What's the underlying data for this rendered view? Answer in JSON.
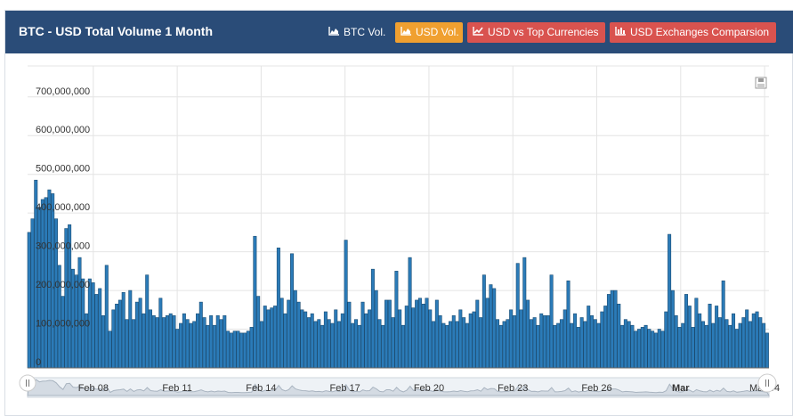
{
  "header": {
    "title": "BTC - USD Total Volume 1 Month",
    "buttons": [
      {
        "label": "BTC Vol.",
        "icon": "area-chart-icon"
      },
      {
        "label": "USD Vol.",
        "icon": "area-chart-icon",
        "active": true
      },
      {
        "label": "USD vs Top Currencies",
        "icon": "line-chart-icon"
      },
      {
        "label": "USD Exchanges Comparsion",
        "icon": "bar-chart-icon"
      }
    ]
  },
  "colors": {
    "header_bg": "#2a4c78",
    "bar_fill": "#2b7bb8",
    "active_button": "#f0a030",
    "red_button": "#d9534f"
  },
  "chart_data": {
    "type": "bar",
    "title": "",
    "xlabel": "",
    "ylabel": "",
    "ylim": [
      0,
      780000000
    ],
    "yticks": [
      "0",
      "100,000,000",
      "200,000,000",
      "300,000,000",
      "400,000,000",
      "500,000,000",
      "600,000,000",
      "700,000,000"
    ],
    "xticks": [
      "Feb 08",
      "Feb 11",
      "Feb 14",
      "Feb 17",
      "Feb 20",
      "Feb 23",
      "Feb 26",
      "Mar",
      "Mar 04"
    ],
    "grid": true,
    "series": [
      {
        "values": [
          350000000,
          385000000,
          485000000,
          415000000,
          435000000,
          440000000,
          460000000,
          450000000,
          385000000,
          265000000,
          185000000,
          360000000,
          370000000,
          255000000,
          240000000,
          285000000,
          230000000,
          140000000,
          230000000,
          220000000,
          190000000,
          205000000,
          135000000,
          265000000,
          95000000,
          150000000,
          165000000,
          175000000,
          195000000,
          125000000,
          200000000,
          125000000,
          170000000,
          180000000,
          140000000,
          240000000,
          150000000,
          135000000,
          130000000,
          180000000,
          130000000,
          135000000,
          140000000,
          135000000,
          100000000,
          115000000,
          140000000,
          125000000,
          115000000,
          120000000,
          140000000,
          170000000,
          130000000,
          110000000,
          135000000,
          110000000,
          135000000,
          125000000,
          135000000,
          95000000,
          90000000,
          95000000,
          95000000,
          90000000,
          90000000,
          95000000,
          105000000,
          340000000,
          185000000,
          120000000,
          160000000,
          150000000,
          155000000,
          160000000,
          310000000,
          180000000,
          140000000,
          175000000,
          295000000,
          200000000,
          170000000,
          150000000,
          145000000,
          130000000,
          140000000,
          120000000,
          125000000,
          110000000,
          145000000,
          125000000,
          115000000,
          150000000,
          120000000,
          140000000,
          330000000,
          170000000,
          115000000,
          125000000,
          110000000,
          170000000,
          140000000,
          150000000,
          255000000,
          200000000,
          125000000,
          110000000,
          175000000,
          175000000,
          130000000,
          250000000,
          150000000,
          110000000,
          160000000,
          285000000,
          155000000,
          175000000,
          180000000,
          165000000,
          180000000,
          150000000,
          120000000,
          175000000,
          135000000,
          115000000,
          110000000,
          120000000,
          135000000,
          120000000,
          150000000,
          130000000,
          115000000,
          140000000,
          145000000,
          175000000,
          130000000,
          240000000,
          180000000,
          215000000,
          205000000,
          125000000,
          110000000,
          120000000,
          125000000,
          150000000,
          135000000,
          270000000,
          150000000,
          285000000,
          175000000,
          125000000,
          130000000,
          110000000,
          140000000,
          135000000,
          135000000,
          240000000,
          110000000,
          115000000,
          125000000,
          150000000,
          225000000,
          115000000,
          140000000,
          105000000,
          130000000,
          120000000,
          160000000,
          135000000,
          125000000,
          115000000,
          145000000,
          160000000,
          190000000,
          200000000,
          200000000,
          165000000,
          110000000,
          125000000,
          120000000,
          110000000,
          95000000,
          100000000,
          105000000,
          110000000,
          100000000,
          95000000,
          90000000,
          100000000,
          95000000,
          145000000,
          345000000,
          200000000,
          135000000,
          105000000,
          115000000,
          190000000,
          160000000,
          105000000,
          180000000,
          140000000,
          120000000,
          110000000,
          165000000,
          115000000,
          160000000,
          130000000,
          225000000,
          125000000,
          110000000,
          140000000,
          100000000,
          115000000,
          130000000,
          150000000,
          120000000,
          140000000,
          145000000,
          130000000,
          115000000,
          90000000
        ]
      }
    ]
  }
}
